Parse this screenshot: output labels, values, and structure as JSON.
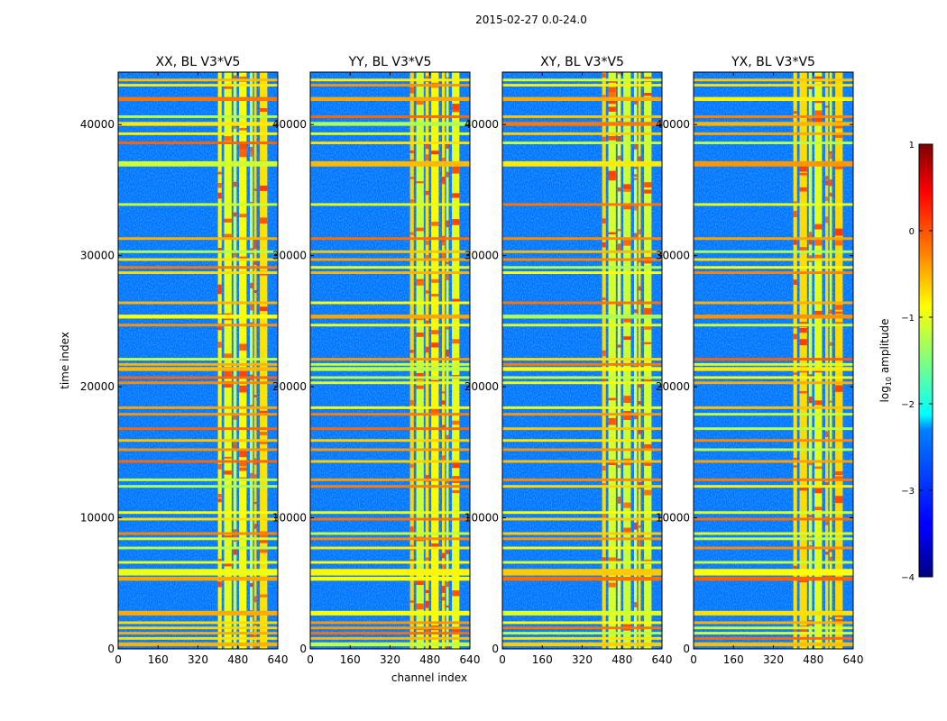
{
  "chart_data": {
    "type": "heatmap",
    "suptitle": "2015-02-27 0.0-24.0",
    "xlabel": "channel index",
    "ylabel": "time index",
    "xlim": [
      0,
      640
    ],
    "ylim": [
      0,
      44000
    ],
    "xticks": [
      0,
      160,
      320,
      480,
      640
    ],
    "yticks": [
      0,
      10000,
      20000,
      30000,
      40000
    ],
    "panels": [
      {
        "title": "XX, BL V3*V5",
        "pol": "XX"
      },
      {
        "title": "YY, BL V3*V5",
        "pol": "YY"
      },
      {
        "title": "XY, BL V3*V5",
        "pol": "XY"
      },
      {
        "title": "YX, BL V3*V5",
        "pol": "YX"
      }
    ],
    "colorbar": {
      "label": "log",
      "label_sub": "10",
      "label_rest": " amplitude",
      "vmin": -4,
      "vmax": 1,
      "ticks": [
        1,
        0,
        -1,
        -2,
        -3,
        -4
      ],
      "tick_labels": [
        "1",
        "0",
        "−1",
        "−2",
        "−3",
        "−4"
      ],
      "colormap": "jet"
    },
    "background_level": -2.8,
    "rfi_channel_bands": [
      [
        400,
        415
      ],
      [
        425,
        455
      ],
      [
        462,
        475
      ],
      [
        485,
        515
      ],
      [
        528,
        540
      ],
      [
        545,
        555
      ],
      [
        568,
        598
      ]
    ],
    "rfi_band_level": -0.9,
    "flagged_time_rows": [
      [
        200,
        500
      ],
      [
        700,
        900
      ],
      [
        1100,
        1300
      ],
      [
        1500,
        1700
      ],
      [
        1900,
        2100
      ],
      [
        2550,
        2900
      ],
      [
        5200,
        5500
      ],
      [
        5600,
        6100
      ],
      [
        6500,
        6700
      ],
      [
        7600,
        7800
      ],
      [
        8300,
        8500
      ],
      [
        8700,
        8900
      ],
      [
        9800,
        10000
      ],
      [
        10300,
        10500
      ],
      [
        12300,
        12500
      ],
      [
        12800,
        13000
      ],
      [
        14200,
        14400
      ],
      [
        15100,
        15300
      ],
      [
        15800,
        16000
      ],
      [
        16700,
        16900
      ],
      [
        17800,
        18000
      ],
      [
        18300,
        18500
      ],
      [
        20200,
        20400
      ],
      [
        20600,
        20800
      ],
      [
        21200,
        21500
      ],
      [
        21600,
        21800
      ],
      [
        22000,
        22200
      ],
      [
        24600,
        24800
      ],
      [
        25200,
        25500
      ],
      [
        26300,
        26500
      ],
      [
        28600,
        28800
      ],
      [
        29000,
        29200
      ],
      [
        29600,
        29800
      ],
      [
        30200,
        30400
      ],
      [
        31200,
        31400
      ],
      [
        33800,
        34000
      ],
      [
        36800,
        37200
      ],
      [
        38500,
        38700
      ],
      [
        39200,
        39400
      ],
      [
        39900,
        40200
      ],
      [
        40500,
        40700
      ],
      [
        41800,
        42100
      ],
      [
        42900,
        43100
      ],
      [
        43300,
        43500
      ]
    ],
    "flagged_row_level": -0.7
  }
}
